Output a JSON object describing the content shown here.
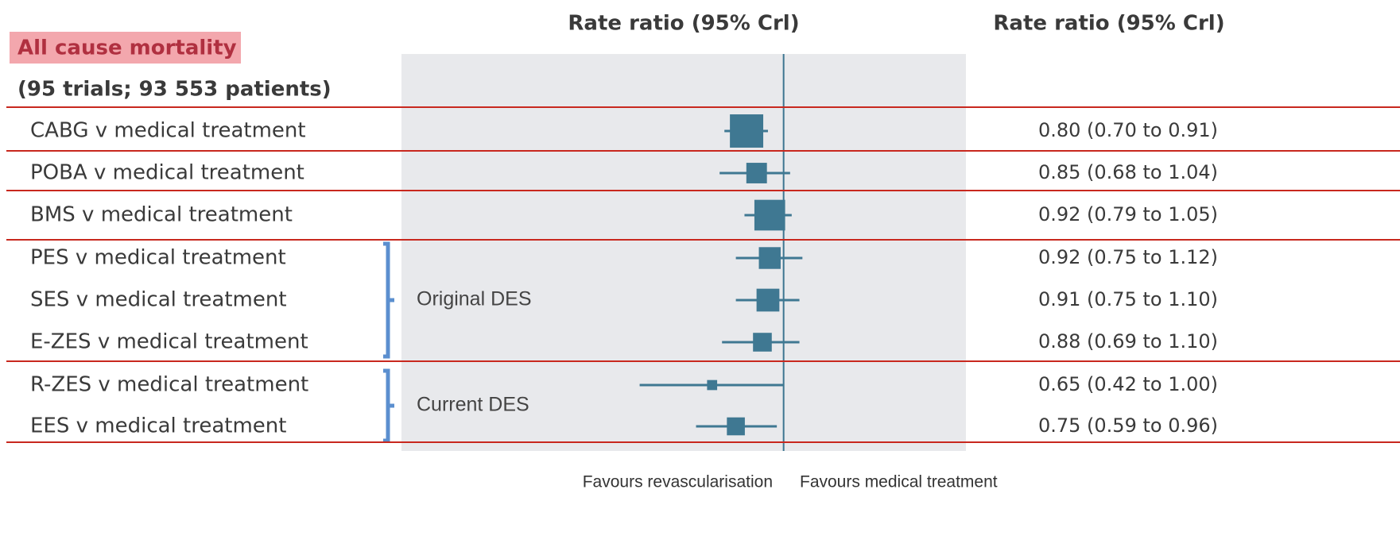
{
  "chart_data": {
    "type": "forest",
    "title": "All cause mortality",
    "subtitle": "(95 trials; 93 553 patients)",
    "column_headers": [
      "Rate ratio (95% Crl)",
      "Rate ratio (95% Crl)"
    ],
    "categories": [
      "CABG v medical treatment",
      "POBA v medical treatment",
      "BMS v medical treatment",
      "PES v medical treatment",
      "SES v medical treatment",
      "E-ZES v medical treatment",
      "R-ZES v medical treatment",
      "EES v medical treatment"
    ],
    "groups": [
      null,
      null,
      null,
      "Original DES",
      "Original DES",
      "Original DES",
      "Current DES",
      "Current DES"
    ],
    "values": [
      0.8,
      0.85,
      0.92,
      0.92,
      0.91,
      0.88,
      0.65,
      0.75
    ],
    "lower": [
      0.7,
      0.68,
      0.79,
      0.75,
      0.75,
      0.69,
      0.42,
      0.59
    ],
    "upper": [
      0.91,
      1.04,
      1.05,
      1.12,
      1.1,
      1.1,
      1.0,
      0.96
    ],
    "value_labels": [
      "0.80 (0.70 to 0.91)",
      "0.85 (0.68 to 1.04)",
      "0.92 (0.79 to 1.05)",
      "0.92 (0.75 to 1.12)",
      "0.91 (0.75 to 1.10)",
      "0.88 (0.69 to 1.10)",
      "0.65 (0.42 to 1.00)",
      "0.75 (0.59 to 0.96)"
    ],
    "xlim": [
      0.1,
      3
    ],
    "log_scale": true,
    "reference_line": 1,
    "color": "#3f7892",
    "x_label_left": "Favours revascularisation",
    "x_label_right": "Favours medical treatment"
  }
}
